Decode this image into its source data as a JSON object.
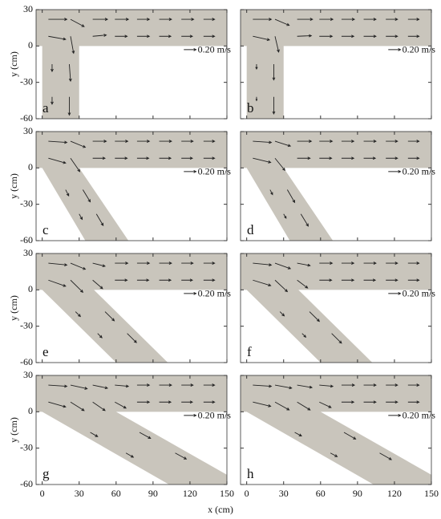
{
  "chart_data": {
    "type": "quiver",
    "x_label": "x (cm)",
    "y_label": "y (cm)",
    "xlim": [
      -5,
      150
    ],
    "ylim": [
      -60,
      30
    ],
    "xticks": [
      0,
      30,
      60,
      90,
      120,
      150
    ],
    "yticks": [
      -60,
      -30,
      0,
      30
    ],
    "channel_color": "#c9c5bc",
    "arrow_color": "#222222",
    "scale": {
      "value": 0.2,
      "label": "0.20 m/s"
    },
    "panels": [
      {
        "label": "a",
        "channel": [
          [
            -5,
            30
          ],
          [
            150,
            30
          ],
          [
            150,
            0
          ],
          [
            30,
            0
          ],
          [
            30,
            -60
          ],
          [
            0,
            -60
          ],
          [
            0,
            0
          ],
          [
            -5,
            0
          ]
        ],
        "arrows": [
          [
            5,
            22,
            0.3,
            0
          ],
          [
            5,
            8,
            0.28,
            -0.05
          ],
          [
            23,
            22,
            0.22,
            -0.12
          ],
          [
            23,
            8,
            0.05,
            -0.28
          ],
          [
            41,
            22,
            0.24,
            0
          ],
          [
            41,
            8,
            0.22,
            0.02
          ],
          [
            59,
            22,
            0.22,
            0
          ],
          [
            59,
            8,
            0.2,
            0
          ],
          [
            77,
            22,
            0.2,
            0
          ],
          [
            77,
            8,
            0.2,
            0
          ],
          [
            95,
            22,
            0.2,
            0
          ],
          [
            95,
            8,
            0.19,
            0
          ],
          [
            113,
            22,
            0.2,
            0
          ],
          [
            113,
            8,
            0.18,
            0
          ],
          [
            131,
            22,
            0.18,
            0
          ],
          [
            131,
            8,
            0.18,
            0
          ],
          [
            8,
            -15,
            0,
            -0.12
          ],
          [
            22,
            -15,
            0.02,
            -0.28
          ],
          [
            8,
            -42,
            0,
            -0.12
          ],
          [
            22,
            -42,
            0,
            -0.3
          ]
        ]
      },
      {
        "label": "b",
        "channel": [
          [
            -5,
            30
          ],
          [
            150,
            30
          ],
          [
            150,
            0
          ],
          [
            30,
            0
          ],
          [
            30,
            -60
          ],
          [
            0,
            -60
          ],
          [
            0,
            0
          ],
          [
            -5,
            0
          ]
        ],
        "arrows": [
          [
            5,
            22,
            0.3,
            0
          ],
          [
            5,
            8,
            0.27,
            -0.06
          ],
          [
            23,
            22,
            0.23,
            -0.1
          ],
          [
            23,
            8,
            0.06,
            -0.26
          ],
          [
            41,
            22,
            0.25,
            0
          ],
          [
            41,
            8,
            0.23,
            0.01
          ],
          [
            59,
            22,
            0.22,
            0
          ],
          [
            59,
            8,
            0.21,
            0
          ],
          [
            77,
            22,
            0.21,
            0
          ],
          [
            77,
            8,
            0.2,
            0
          ],
          [
            95,
            22,
            0.2,
            0
          ],
          [
            95,
            8,
            0.2,
            0
          ],
          [
            113,
            22,
            0.19,
            0
          ],
          [
            113,
            8,
            0.19,
            0
          ],
          [
            131,
            22,
            0.18,
            0
          ],
          [
            131,
            8,
            0.18,
            0
          ],
          [
            8,
            -15,
            0,
            -0.08
          ],
          [
            22,
            -15,
            0,
            -0.26
          ],
          [
            8,
            -42,
            0,
            -0.06
          ],
          [
            22,
            -42,
            0,
            -0.28
          ]
        ]
      },
      {
        "label": "c",
        "channel": [
          [
            -5,
            30
          ],
          [
            150,
            30
          ],
          [
            150,
            0
          ],
          [
            30,
            0
          ],
          [
            70,
            -60
          ],
          [
            35,
            -60
          ],
          [
            0,
            0
          ],
          [
            -5,
            0
          ]
        ],
        "arrows": [
          [
            5,
            22,
            0.3,
            -0.02
          ],
          [
            5,
            8,
            0.28,
            -0.08
          ],
          [
            23,
            22,
            0.24,
            -0.1
          ],
          [
            23,
            8,
            0.15,
            -0.22
          ],
          [
            41,
            22,
            0.22,
            0
          ],
          [
            41,
            8,
            0.2,
            0
          ],
          [
            59,
            22,
            0.21,
            0
          ],
          [
            59,
            8,
            0.2,
            0
          ],
          [
            77,
            22,
            0.2,
            0
          ],
          [
            77,
            8,
            0.19,
            0
          ],
          [
            95,
            22,
            0.2,
            0
          ],
          [
            95,
            8,
            0.19,
            0
          ],
          [
            113,
            22,
            0.19,
            0
          ],
          [
            113,
            8,
            0.18,
            0
          ],
          [
            131,
            22,
            0.18,
            0
          ],
          [
            131,
            8,
            0.18,
            0
          ],
          [
            19,
            -18,
            0.05,
            -0.1
          ],
          [
            33,
            -18,
            0.12,
            -0.2
          ],
          [
            30,
            -38,
            0.05,
            -0.09
          ],
          [
            44,
            -38,
            0.11,
            -0.19
          ]
        ]
      },
      {
        "label": "d",
        "channel": [
          [
            -5,
            30
          ],
          [
            150,
            30
          ],
          [
            150,
            0
          ],
          [
            30,
            0
          ],
          [
            70,
            -60
          ],
          [
            35,
            -60
          ],
          [
            0,
            0
          ],
          [
            -5,
            0
          ]
        ],
        "arrows": [
          [
            5,
            22,
            0.3,
            -0.02
          ],
          [
            5,
            8,
            0.29,
            -0.07
          ],
          [
            23,
            22,
            0.25,
            -0.08
          ],
          [
            23,
            8,
            0.16,
            -0.2
          ],
          [
            41,
            22,
            0.23,
            0
          ],
          [
            41,
            8,
            0.21,
            0
          ],
          [
            59,
            22,
            0.21,
            0
          ],
          [
            59,
            8,
            0.2,
            0
          ],
          [
            77,
            22,
            0.2,
            0
          ],
          [
            77,
            8,
            0.2,
            0
          ],
          [
            95,
            22,
            0.2,
            0
          ],
          [
            95,
            8,
            0.19,
            0
          ],
          [
            113,
            22,
            0.19,
            0
          ],
          [
            113,
            8,
            0.19,
            0
          ],
          [
            131,
            22,
            0.18,
            0
          ],
          [
            131,
            8,
            0.18,
            0
          ],
          [
            19,
            -18,
            0.04,
            -0.08
          ],
          [
            33,
            -18,
            0.12,
            -0.21
          ],
          [
            30,
            -38,
            0.04,
            -0.07
          ],
          [
            44,
            -38,
            0.12,
            -0.2
          ]
        ]
      },
      {
        "label": "e",
        "channel": [
          [
            -5,
            30
          ],
          [
            150,
            30
          ],
          [
            150,
            0
          ],
          [
            42,
            0
          ],
          [
            102,
            -60
          ],
          [
            60,
            -60
          ],
          [
            0,
            0
          ],
          [
            -5,
            0
          ]
        ],
        "arrows": [
          [
            5,
            22,
            0.3,
            -0.03
          ],
          [
            5,
            8,
            0.28,
            -0.1
          ],
          [
            23,
            22,
            0.24,
            -0.1
          ],
          [
            23,
            8,
            0.2,
            -0.2
          ],
          [
            41,
            22,
            0.2,
            -0.05
          ],
          [
            41,
            8,
            0.16,
            -0.14
          ],
          [
            59,
            22,
            0.21,
            0
          ],
          [
            59,
            8,
            0.2,
            0
          ],
          [
            77,
            22,
            0.2,
            0
          ],
          [
            77,
            8,
            0.19,
            0
          ],
          [
            95,
            22,
            0.2,
            0
          ],
          [
            95,
            8,
            0.19,
            0
          ],
          [
            113,
            22,
            0.19,
            0
          ],
          [
            113,
            8,
            0.18,
            0
          ],
          [
            131,
            22,
            0.18,
            0
          ],
          [
            131,
            8,
            0.18,
            0
          ],
          [
            27,
            -18,
            0.08,
            -0.08
          ],
          [
            51,
            -18,
            0.15,
            -0.15
          ],
          [
            45,
            -36,
            0.07,
            -0.07
          ],
          [
            69,
            -36,
            0.15,
            -0.15
          ]
        ]
      },
      {
        "label": "f",
        "channel": [
          [
            -5,
            30
          ],
          [
            150,
            30
          ],
          [
            150,
            0
          ],
          [
            42,
            0
          ],
          [
            102,
            -60
          ],
          [
            60,
            -60
          ],
          [
            0,
            0
          ],
          [
            -5,
            0
          ]
        ],
        "arrows": [
          [
            5,
            22,
            0.3,
            -0.03
          ],
          [
            5,
            8,
            0.29,
            -0.09
          ],
          [
            23,
            22,
            0.25,
            -0.09
          ],
          [
            23,
            8,
            0.2,
            -0.19
          ],
          [
            41,
            22,
            0.21,
            -0.04
          ],
          [
            41,
            8,
            0.17,
            -0.13
          ],
          [
            59,
            22,
            0.21,
            0
          ],
          [
            59,
            8,
            0.2,
            0
          ],
          [
            77,
            22,
            0.2,
            0
          ],
          [
            77,
            8,
            0.2,
            0
          ],
          [
            95,
            22,
            0.2,
            0
          ],
          [
            95,
            8,
            0.19,
            0
          ],
          [
            113,
            22,
            0.19,
            0
          ],
          [
            113,
            8,
            0.19,
            0
          ],
          [
            131,
            22,
            0.18,
            0
          ],
          [
            131,
            8,
            0.18,
            0
          ],
          [
            27,
            -18,
            0.07,
            -0.07
          ],
          [
            51,
            -18,
            0.16,
            -0.16
          ],
          [
            45,
            -36,
            0.06,
            -0.06
          ],
          [
            69,
            -36,
            0.16,
            -0.16
          ]
        ]
      },
      {
        "label": "g",
        "channel": [
          [
            -5,
            30
          ],
          [
            150,
            30
          ],
          [
            150,
            0
          ],
          [
            60,
            0
          ],
          [
            150,
            -52
          ],
          [
            150,
            -60
          ],
          [
            103,
            -60
          ],
          [
            0,
            0
          ],
          [
            -5,
            0
          ]
        ],
        "arrows": [
          [
            5,
            22,
            0.3,
            -0.02
          ],
          [
            5,
            8,
            0.28,
            -0.08
          ],
          [
            23,
            22,
            0.27,
            -0.06
          ],
          [
            23,
            8,
            0.22,
            -0.14
          ],
          [
            41,
            22,
            0.24,
            -0.05
          ],
          [
            41,
            8,
            0.2,
            -0.14
          ],
          [
            59,
            22,
            0.22,
            -0.02
          ],
          [
            59,
            8,
            0.18,
            -0.1
          ],
          [
            77,
            22,
            0.2,
            0
          ],
          [
            77,
            8,
            0.2,
            0
          ],
          [
            95,
            22,
            0.2,
            0
          ],
          [
            95,
            8,
            0.19,
            0
          ],
          [
            113,
            22,
            0.19,
            0
          ],
          [
            113,
            8,
            0.18,
            0
          ],
          [
            131,
            22,
            0.18,
            0
          ],
          [
            131,
            8,
            0.18,
            0
          ],
          [
            39,
            -17,
            0.12,
            -0.07
          ],
          [
            79,
            -17,
            0.18,
            -0.1
          ],
          [
            68,
            -34,
            0.12,
            -0.07
          ],
          [
            108,
            -34,
            0.18,
            -0.1
          ]
        ]
      },
      {
        "label": "h",
        "channel": [
          [
            -5,
            30
          ],
          [
            150,
            30
          ],
          [
            150,
            0
          ],
          [
            60,
            0
          ],
          [
            150,
            -52
          ],
          [
            150,
            -60
          ],
          [
            103,
            -60
          ],
          [
            0,
            0
          ],
          [
            -5,
            0
          ]
        ],
        "arrows": [
          [
            5,
            22,
            0.3,
            -0.02
          ],
          [
            5,
            8,
            0.29,
            -0.07
          ],
          [
            23,
            22,
            0.27,
            -0.05
          ],
          [
            23,
            8,
            0.23,
            -0.13
          ],
          [
            41,
            22,
            0.24,
            -0.04
          ],
          [
            41,
            8,
            0.21,
            -0.13
          ],
          [
            59,
            22,
            0.22,
            -0.02
          ],
          [
            59,
            8,
            0.19,
            -0.09
          ],
          [
            77,
            22,
            0.21,
            0
          ],
          [
            77,
            8,
            0.2,
            0
          ],
          [
            95,
            22,
            0.2,
            0
          ],
          [
            95,
            8,
            0.2,
            0
          ],
          [
            113,
            22,
            0.19,
            0
          ],
          [
            113,
            8,
            0.19,
            0
          ],
          [
            131,
            22,
            0.18,
            0
          ],
          [
            131,
            8,
            0.18,
            0
          ],
          [
            39,
            -17,
            0.11,
            -0.06
          ],
          [
            79,
            -17,
            0.19,
            -0.11
          ],
          [
            68,
            -34,
            0.11,
            -0.06
          ],
          [
            108,
            -34,
            0.19,
            -0.11
          ]
        ]
      }
    ]
  }
}
